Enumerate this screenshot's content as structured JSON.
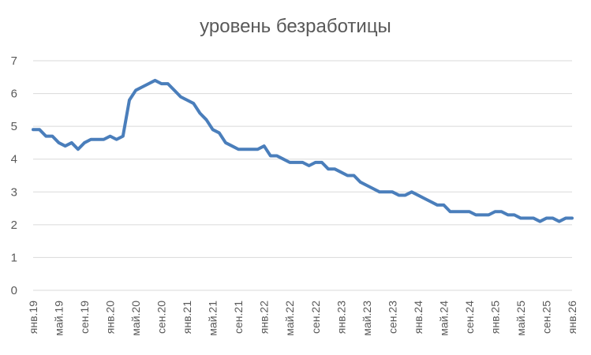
{
  "chart_data": {
    "type": "line",
    "title": "уровень безработицы",
    "xlabel": "",
    "ylabel": "",
    "ylim": [
      0,
      7
    ],
    "yticks": [
      0,
      1,
      2,
      3,
      4,
      5,
      6,
      7
    ],
    "grid": true,
    "legend": "none",
    "x_tick_labels": [
      "янв.19",
      "май.19",
      "сен.19",
      "янв.20",
      "май.20",
      "сен.20",
      "янв.21",
      "май.21",
      "сен.21",
      "янв.22",
      "май.22",
      "сен.22",
      "янв.23",
      "май.23",
      "сен.23",
      "янв.24",
      "май.24",
      "сен.24",
      "янв.25",
      "май.25",
      "сен.25",
      "янв.26"
    ],
    "series": [
      {
        "color": "#4a7ebb",
        "values": [
          4.9,
          4.9,
          4.7,
          4.7,
          4.5,
          4.4,
          4.5,
          4.3,
          4.5,
          4.6,
          4.6,
          4.6,
          4.7,
          4.6,
          4.7,
          5.8,
          6.1,
          6.2,
          6.3,
          6.4,
          6.3,
          6.3,
          6.1,
          5.9,
          5.8,
          5.7,
          5.4,
          5.2,
          4.9,
          4.8,
          4.5,
          4.4,
          4.3,
          4.3,
          4.3,
          4.3,
          4.4,
          4.1,
          4.1,
          4.0,
          3.9,
          3.9,
          3.9,
          3.8,
          3.9,
          3.9,
          3.7,
          3.7,
          3.6,
          3.5,
          3.5,
          3.3,
          3.2,
          3.1,
          3.0,
          3.0,
          3.0,
          2.9,
          2.9,
          3.0,
          2.9,
          2.8,
          2.7,
          2.6,
          2.6,
          2.4,
          2.4,
          2.4,
          2.4,
          2.3,
          2.3,
          2.3,
          2.4,
          2.4,
          2.3,
          2.3,
          2.2,
          2.2,
          2.2,
          2.1,
          2.2,
          2.2,
          2.1,
          2.2,
          2.2
        ]
      }
    ]
  }
}
